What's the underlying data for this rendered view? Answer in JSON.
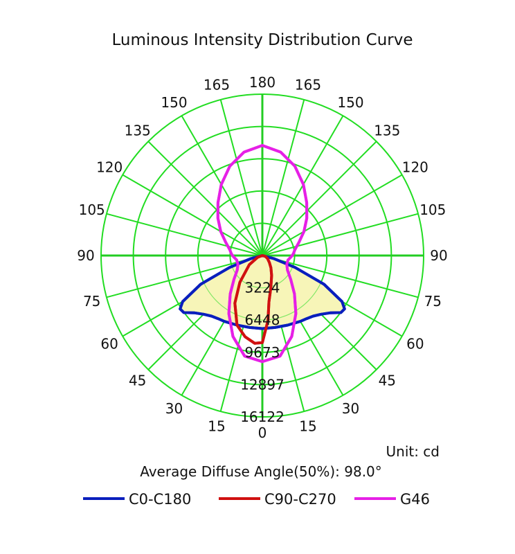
{
  "chart_data": {
    "type": "polar",
    "title": "Luminous Intensity Distribution Curve",
    "unit_label": "Unit: cd",
    "diffuse_angle_label": "Average Diffuse Angle(50%): 98.0°",
    "radial_axis": {
      "max": 16122,
      "ring_values": [
        3224,
        6448,
        9673,
        12897,
        16122
      ],
      "ring_labels": [
        "3224",
        "6448",
        "9673",
        "12897",
        "16122"
      ]
    },
    "angle_axis": {
      "step_deg": 15,
      "left_labels": [
        "0",
        "15",
        "30",
        "45",
        "60",
        "75",
        "90",
        "105",
        "120",
        "135",
        "150",
        "165",
        "180"
      ],
      "right_labels": [
        "15",
        "30",
        "45",
        "60",
        "75",
        "90",
        "105",
        "120",
        "135",
        "150",
        "165"
      ]
    },
    "series": [
      {
        "name": "C0-C180",
        "color": "#0a1fbd",
        "fill": "#f7f5b8",
        "points": [
          [
            -90,
            0
          ],
          [
            -75,
            1200
          ],
          [
            -70,
            3500
          ],
          [
            -65,
            6800
          ],
          [
            -60,
            9200
          ],
          [
            -57,
            9800
          ],
          [
            -54,
            9700
          ],
          [
            -50,
            8900
          ],
          [
            -45,
            8300
          ],
          [
            -40,
            7900
          ],
          [
            -35,
            7700
          ],
          [
            -30,
            7600
          ],
          [
            -20,
            7400
          ],
          [
            -10,
            7300
          ],
          [
            0,
            7300
          ],
          [
            10,
            7300
          ],
          [
            20,
            7400
          ],
          [
            30,
            7600
          ],
          [
            35,
            7700
          ],
          [
            40,
            7900
          ],
          [
            45,
            8300
          ],
          [
            50,
            8900
          ],
          [
            54,
            9700
          ],
          [
            57,
            9800
          ],
          [
            60,
            9200
          ],
          [
            65,
            6800
          ],
          [
            70,
            3500
          ],
          [
            75,
            1200
          ],
          [
            90,
            0
          ]
        ]
      },
      {
        "name": "C90-C270",
        "color": "#d01010",
        "points": [
          [
            -90,
            0
          ],
          [
            -70,
            500
          ],
          [
            -55,
            1600
          ],
          [
            -40,
            3500
          ],
          [
            -30,
            5500
          ],
          [
            -20,
            7400
          ],
          [
            -12,
            8300
          ],
          [
            -5,
            8800
          ],
          [
            0,
            8700
          ],
          [
            5,
            6500
          ],
          [
            8,
            4700
          ],
          [
            15,
            3300
          ],
          [
            25,
            2200
          ],
          [
            35,
            1500
          ],
          [
            45,
            1000
          ],
          [
            60,
            600
          ],
          [
            75,
            300
          ],
          [
            90,
            0
          ]
        ]
      },
      {
        "name": "G46",
        "color": "#e620e6",
        "points": [
          [
            -180,
            11000
          ],
          [
            -170,
            10500
          ],
          [
            -160,
            9500
          ],
          [
            -150,
            8200
          ],
          [
            -140,
            6900
          ],
          [
            -130,
            5800
          ],
          [
            -120,
            4800
          ],
          [
            -110,
            3900
          ],
          [
            -100,
            3300
          ],
          [
            -93,
            3100
          ],
          [
            -88,
            2900
          ],
          [
            -80,
            2600
          ],
          [
            -70,
            2600
          ],
          [
            -60,
            2900
          ],
          [
            -50,
            3700
          ],
          [
            -40,
            5000
          ],
          [
            -30,
            6700
          ],
          [
            -20,
            8600
          ],
          [
            -10,
            10200
          ],
          [
            0,
            10600
          ],
          [
            10,
            10200
          ],
          [
            20,
            8600
          ],
          [
            30,
            6700
          ],
          [
            40,
            5000
          ],
          [
            50,
            3700
          ],
          [
            60,
            2900
          ],
          [
            70,
            2600
          ],
          [
            80,
            2600
          ],
          [
            88,
            2900
          ],
          [
            93,
            3100
          ],
          [
            100,
            3300
          ],
          [
            110,
            3900
          ],
          [
            120,
            4800
          ],
          [
            130,
            5800
          ],
          [
            140,
            6900
          ],
          [
            150,
            8200
          ],
          [
            160,
            9500
          ],
          [
            170,
            10500
          ],
          [
            180,
            11000
          ]
        ]
      }
    ],
    "legend": [
      {
        "label": "C0-C180",
        "color": "#0a1fbd"
      },
      {
        "label": "C90-C270",
        "color": "#d01010"
      },
      {
        "label": "G46",
        "color": "#e620e6"
      }
    ],
    "grid_color": "#22dd22",
    "grid_axis_color": "#22cc22"
  }
}
